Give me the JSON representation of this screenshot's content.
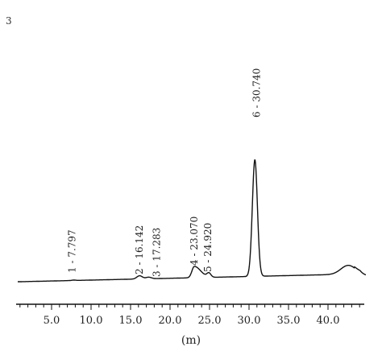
{
  "chart_data": {
    "type": "line",
    "title": "",
    "xlabel": "(m)",
    "ylabel": "",
    "xlim": [
      0,
      45
    ],
    "x_ticks": [
      {
        "value": 5,
        "label": "5.0"
      },
      {
        "value": 10,
        "label": "10.0"
      },
      {
        "value": 15,
        "label": "15.0"
      },
      {
        "value": 20,
        "label": "20.0"
      },
      {
        "value": 25,
        "label": "25.0"
      },
      {
        "value": 30,
        "label": "30.0"
      },
      {
        "value": 35,
        "label": "35.0"
      },
      {
        "value": 40,
        "label": "40.0"
      }
    ],
    "grid": false,
    "peaks": [
      {
        "label": "1 - 7.797",
        "x": 7.797,
        "height": 0.5
      },
      {
        "label": "2 - 16.142",
        "x": 16.142,
        "height": 4
      },
      {
        "label": "3 - 17.283",
        "x": 17.283,
        "height": 2
      },
      {
        "label": "4 - 23.070",
        "x": 23.07,
        "height": 14
      },
      {
        "label": "5 - 24.920",
        "x": 24.92,
        "height": 5
      },
      {
        "label": "6 - 30.740",
        "x": 30.74,
        "height": 145
      }
    ]
  },
  "corner_mark": "3"
}
